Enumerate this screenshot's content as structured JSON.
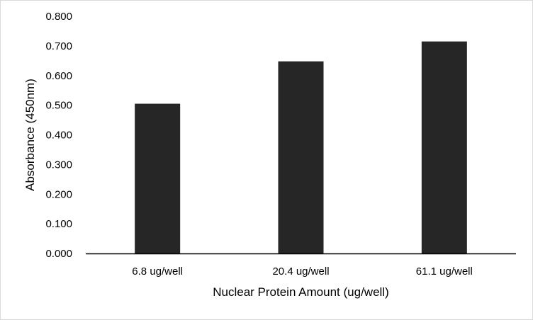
{
  "chart_data": {
    "type": "bar",
    "title": "",
    "categories": [
      "6.8 ug/well",
      "20.4 ug/well",
      "61.1 ug/well"
    ],
    "values": [
      0.505,
      0.648,
      0.715
    ],
    "xlabel": "Nuclear Protein Amount (ug/well)",
    "ylabel": "Absorbance (450nm)",
    "ylim": [
      0,
      0.8
    ],
    "yticks": [
      "0.000",
      "0.100",
      "0.200",
      "0.300",
      "0.400",
      "0.500",
      "0.600",
      "0.700",
      "0.800"
    ],
    "grid": false,
    "legend": "none",
    "bar_color": "#262626",
    "axis_color": "#000000"
  }
}
